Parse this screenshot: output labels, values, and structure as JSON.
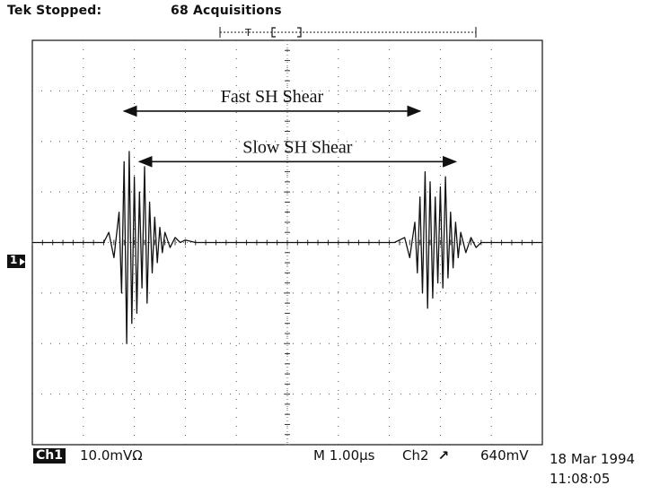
{
  "header": {
    "brand_status": "Tek Stopped:",
    "acquisitions": "68 Acquisitions",
    "trigger_marker": "T"
  },
  "channel_marker": "1",
  "footer": {
    "channel": "Ch1",
    "volts_per_div": "10.0mVΩ",
    "timebase": "M 1.00µs",
    "trigger_source": "Ch2",
    "trigger_slope_icon": "rising-edge-icon",
    "trigger_level": "640mV"
  },
  "timestamp": {
    "date": "18 Mar 1994",
    "time": "11:08:05"
  },
  "chart_data": {
    "type": "line",
    "title": "",
    "xlabel": "",
    "ylabel": "",
    "grid": true,
    "xlim": [
      0,
      10
    ],
    "ylim": [
      -4,
      4
    ],
    "x_divisions": 10,
    "y_divisions": 8,
    "series": [
      {
        "x": [
          0,
          1.4,
          1.5,
          1.6,
          1.7,
          1.75,
          1.8,
          1.85,
          1.9,
          1.95,
          2.0,
          2.05,
          2.1,
          2.15,
          2.2,
          2.25,
          2.3,
          2.35,
          2.4,
          2.45,
          2.5,
          2.55,
          2.6,
          2.7,
          2.8,
          2.9,
          3.0,
          3.2,
          7.1,
          7.3,
          7.4,
          7.5,
          7.55,
          7.6,
          7.65,
          7.7,
          7.75,
          7.8,
          7.85,
          7.9,
          7.95,
          8.0,
          8.05,
          8.1,
          8.15,
          8.2,
          8.25,
          8.3,
          8.35,
          8.4,
          8.5,
          8.6,
          8.7,
          8.8,
          10
        ],
        "y": [
          0,
          0,
          0.2,
          -0.3,
          0.6,
          -1.0,
          1.6,
          -2.0,
          1.8,
          -1.6,
          1.3,
          -1.4,
          1.0,
          -0.9,
          1.5,
          -1.2,
          0.8,
          -0.6,
          0.5,
          -0.4,
          0.3,
          -0.2,
          0.2,
          -0.1,
          0.1,
          0,
          0.05,
          0,
          0,
          0.1,
          -0.3,
          0.4,
          -0.6,
          0.9,
          -1.0,
          1.4,
          -1.3,
          1.2,
          -1.1,
          0.9,
          -0.8,
          1.1,
          -0.9,
          1.3,
          -0.7,
          0.6,
          -0.5,
          0.4,
          -0.3,
          0.2,
          -0.2,
          0.1,
          -0.1,
          0,
          0
        ]
      }
    ],
    "annotations": [
      {
        "text": "Fast SH Shear",
        "x_start": 1.8,
        "x_end": 7.6,
        "y": 2.6
      },
      {
        "text": "Slow SH Shear",
        "x_start": 2.1,
        "x_end": 8.3,
        "y": 1.6
      }
    ]
  }
}
